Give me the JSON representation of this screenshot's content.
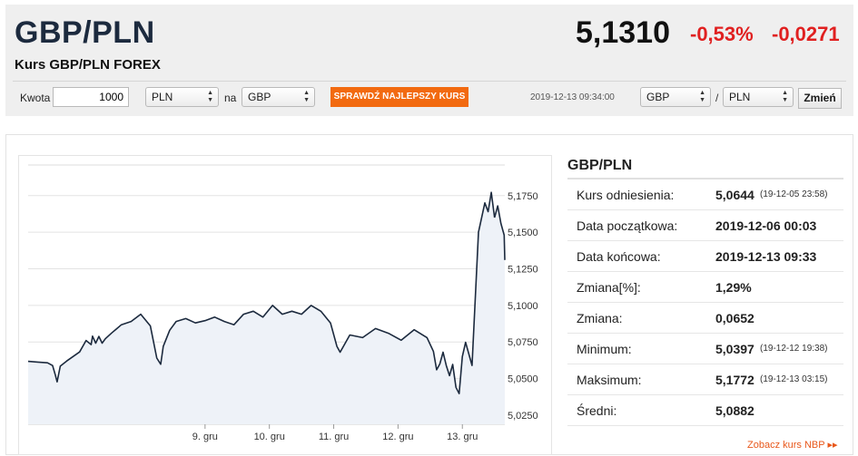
{
  "header": {
    "pair": "GBP/PLN",
    "subtitle": "Kurs GBP/PLN FOREX",
    "price": "5,1310",
    "change_pct": "-0,53%",
    "change_abs": "-0,0271"
  },
  "converter": {
    "amount_label": "Kwota",
    "amount_value": "1000",
    "from_currency": "PLN",
    "to_label": "na",
    "to_currency": "GBP",
    "best_rate_button": "SPRAWDŹ NAJLEPSZY KURS",
    "timestamp": "2019-12-13 09:34:00",
    "pair_base": "GBP",
    "pair_separator": "/",
    "pair_quote": "PLN",
    "change_button": "Zmień"
  },
  "info": {
    "title": "GBP/PLN",
    "rows": [
      {
        "label": "Kurs odniesienia:",
        "value": "5,0644",
        "date": "(19-12-05 23:58)"
      },
      {
        "label": "Data początkowa:",
        "value": "2019-12-06 00:03",
        "date": ""
      },
      {
        "label": "Data końcowa:",
        "value": "2019-12-13 09:33",
        "date": ""
      },
      {
        "label": "Zmiana[%]:",
        "value": "1,29%",
        "date": ""
      },
      {
        "label": "Zmiana:",
        "value": "0,0652",
        "date": ""
      },
      {
        "label": "Minimum:",
        "value": "5,0397",
        "date": "(19-12-12 19:38)"
      },
      {
        "label": "Maksimum:",
        "value": "5,1772",
        "date": "(19-12-13 03:15)"
      },
      {
        "label": "Średni:",
        "value": "5,0882",
        "date": ""
      }
    ],
    "more_link": "Zobacz kurs NBP ▸▸"
  },
  "colors": {
    "accent": "#f26a10",
    "negative": "#e02020",
    "line": "#1c2a3e",
    "area": "#eef2f8"
  },
  "chart_data": {
    "type": "area",
    "y_ticks": [
      "5,1750",
      "5,1500",
      "5,1250",
      "5,1000",
      "5,0750",
      "5,0500",
      "5,0250"
    ],
    "y_tick_values": [
      5.175,
      5.15,
      5.125,
      5.1,
      5.075,
      5.05,
      5.025
    ],
    "x_ticks": [
      "9. gru",
      "10. gru",
      "11. gru",
      "12. gru",
      "13. gru"
    ],
    "x_tick_positions": [
      2.75,
      3.75,
      4.75,
      5.75,
      6.75
    ],
    "ylim": [
      5.0188,
      5.1959
    ],
    "xlim": [
      0,
      7.41
    ],
    "grid": true,
    "series": [
      {
        "x": [
          0,
          0.15,
          0.3,
          0.38,
          0.42,
          0.45,
          0.5,
          0.6,
          0.7,
          0.8,
          0.9,
          0.98,
          1.0,
          1.05,
          1.1,
          1.15,
          1.2,
          1.3,
          1.45,
          1.6,
          1.75,
          1.9,
          2.0,
          2.06,
          2.1,
          2.2,
          2.3,
          2.45,
          2.6,
          2.75,
          2.9,
          3.05,
          3.2,
          3.35,
          3.5,
          3.65,
          3.8,
          3.95,
          4.1,
          4.25,
          4.4,
          4.55,
          4.7,
          4.8,
          4.85,
          4.9,
          5.0,
          5.2,
          5.4,
          5.6,
          5.8,
          6.0,
          6.2,
          6.3,
          6.35,
          6.4,
          6.45,
          6.5,
          6.55,
          6.6,
          6.65,
          6.7,
          6.75,
          6.8,
          6.9,
          7.0,
          7.1,
          7.15,
          7.2,
          7.25
        ],
        "y": [
          5.0618,
          5.0613,
          5.0608,
          5.0589,
          5.0528,
          5.0478,
          5.0585,
          5.062,
          5.0651,
          5.0682,
          5.076,
          5.0732,
          5.079,
          5.0742,
          5.0788,
          5.0742,
          5.0772,
          5.0812,
          5.0868,
          5.089,
          5.094,
          5.086,
          5.064,
          5.0598,
          5.072,
          5.083,
          5.089,
          5.091,
          5.088,
          5.0896,
          5.092,
          5.089,
          5.0868,
          5.094,
          5.096,
          5.092,
          5.1,
          5.094,
          5.096,
          5.094,
          5.1,
          5.096,
          5.088,
          5.072,
          5.068,
          5.072,
          5.0798,
          5.078,
          5.0842,
          5.081,
          5.0762,
          5.0834,
          5.078,
          5.0685,
          5.056,
          5.06,
          5.068,
          5.059,
          5.052,
          5.0597,
          5.044,
          5.0397,
          5.065,
          5.0748,
          5.059,
          5.15,
          5.17,
          5.164,
          5.1772,
          5.16
        ]
      },
      {
        "x": [
          7.25,
          7.3,
          7.35,
          7.4,
          7.41
        ],
        "y": [
          5.16,
          5.168,
          5.156,
          5.148,
          5.131
        ]
      }
    ]
  }
}
